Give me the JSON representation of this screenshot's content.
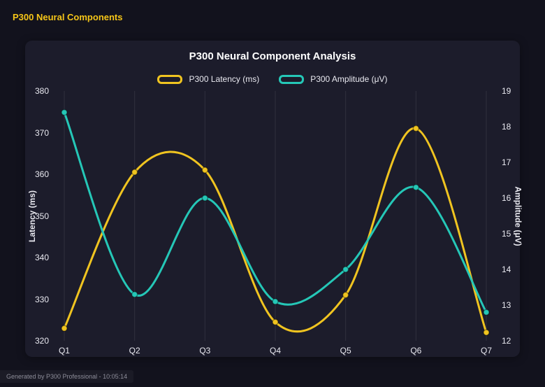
{
  "header": {
    "title": "P300 Neural Components"
  },
  "footer": {
    "text": "Generated by P300 Professional - 10:05:14"
  },
  "chart_data": {
    "type": "line",
    "title": "P300 Neural Component Analysis",
    "categories": [
      "Q1",
      "Q2",
      "Q3",
      "Q4",
      "Q5",
      "Q6",
      "Q7"
    ],
    "series": [
      {
        "name": "P300 Latency (ms)",
        "axis": "left",
        "color": "#f0c420",
        "values": [
          323,
          360.5,
          361,
          324.5,
          331,
          371,
          322
        ]
      },
      {
        "name": "P300 Amplitude (μV)",
        "axis": "right",
        "color": "#25c7b7",
        "values": [
          18.4,
          13.3,
          16.0,
          13.1,
          14.0,
          16.3,
          12.8
        ]
      }
    ],
    "axes": {
      "left": {
        "label": "Latency (ms)",
        "min": 320,
        "max": 380,
        "step": 10
      },
      "right": {
        "label": "Amplitude (μV)",
        "min": 12,
        "max": 19,
        "step": 1
      }
    },
    "grid": "vertical",
    "legend_position": "top",
    "smooth": true,
    "background": "#1c1c2b",
    "gridline_color": "rgba(255,255,255,0.09)"
  }
}
